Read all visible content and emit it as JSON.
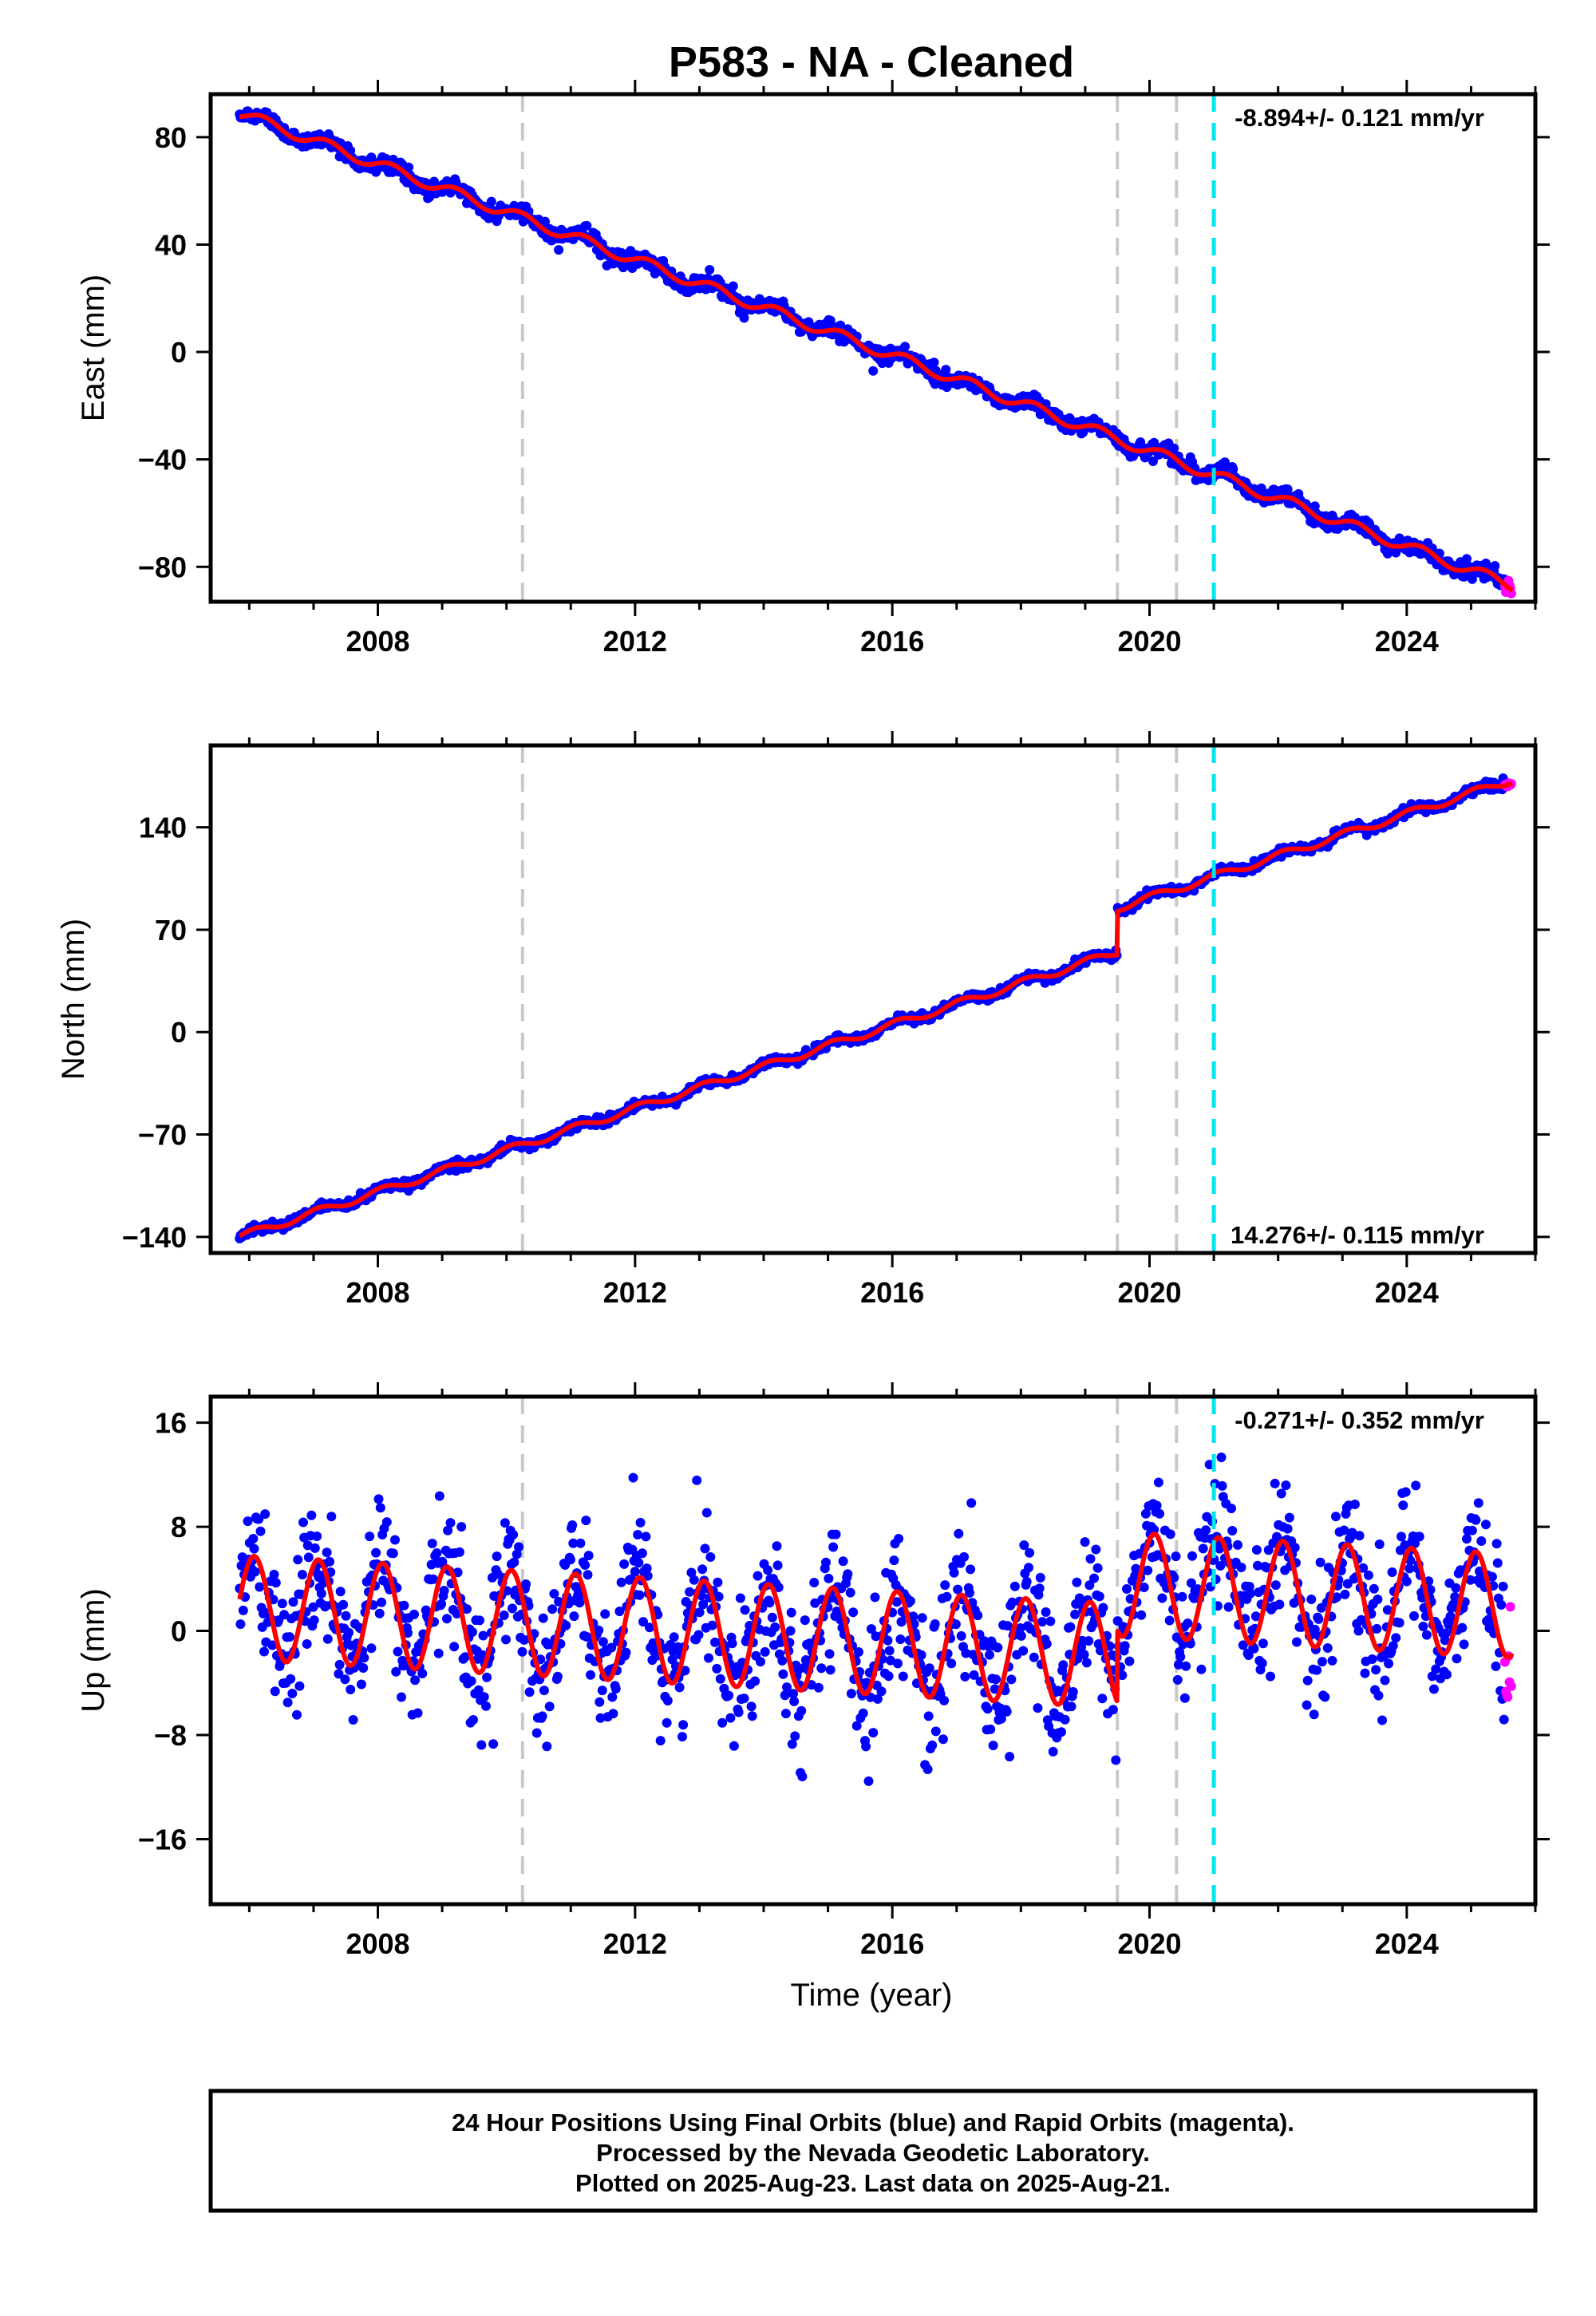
{
  "title": "P583  - NA - Cleaned",
  "xlabel": "Time (year)",
  "footer": {
    "line1": "24 Hour Positions Using Final Orbits (blue) and Rapid Orbits (magenta).",
    "line2": "Processed by the Nevada Geodetic Laboratory.",
    "line3": "Plotted on 2025-Aug-23. Last data on 2025-Aug-21."
  },
  "colors": {
    "final_orbits": "#0000ff",
    "rapid_orbits": "#ff00ff",
    "model": "#ff0000",
    "break_lines": "#c8c8c8",
    "event_line": "#00e5ee"
  },
  "chart_data": [
    {
      "type": "scatter",
      "ylabel": "East (mm)",
      "xlim": [
        2005.4,
        2026.0
      ],
      "ylim": [
        -93,
        96
      ],
      "yticks": [
        80,
        40,
        0,
        -40,
        -80
      ],
      "xticks": [
        2008,
        2012,
        2016,
        2020,
        2024
      ],
      "rate_label": "-8.894+/- 0.121 mm/yr",
      "rate_label_position": "top-right",
      "start": 2005.85,
      "end": 2025.64,
      "value_at_start": 89,
      "rate": -8.894,
      "annual_amplitude": 2.0,
      "annual_phase": 0.2,
      "scatter": 1.5,
      "steps": [],
      "break_lines": [
        2010.25,
        2019.5,
        2020.42
      ],
      "event_line": 2021.0
    },
    {
      "type": "scatter",
      "ylabel": "North (mm)",
      "xlim": [
        2005.4,
        2026.0
      ],
      "ylim": [
        -151,
        196
      ],
      "yticks": [
        140,
        70,
        0,
        -70,
        -140
      ],
      "xticks": [
        2008,
        2012,
        2016,
        2020,
        2024
      ],
      "rate_label": "14.276+/- 0.115 mm/yr",
      "rate_label_position": "bottom-right",
      "start": 2005.85,
      "end": 2025.64,
      "value_at_start": -140,
      "rate": 14.276,
      "annual_amplitude": 2.5,
      "annual_phase": 1.1,
      "scatter": 1.5,
      "steps": [
        {
          "year": 2019.5,
          "offset": 30
        }
      ],
      "break_lines": [
        2010.25,
        2019.5,
        2020.42
      ],
      "event_line": 2021.0
    },
    {
      "type": "scatter",
      "ylabel": "Up (mm)",
      "xlim": [
        2005.4,
        2026.0
      ],
      "ylim": [
        -21,
        18
      ],
      "yticks": [
        16,
        8,
        0,
        -8,
        -16
      ],
      "xticks": [
        2008,
        2012,
        2016,
        2020,
        2024
      ],
      "rate_label": "-0.271+/- 0.352 mm/yr",
      "rate_label_position": "top-right",
      "start": 2005.85,
      "end": 2025.64,
      "value_at_start": 1.8,
      "rate": -0.271,
      "annual_amplitude": 4.0,
      "annual_phase": 1.1,
      "scatter": 2.6,
      "steps": [
        {
          "year": 2019.5,
          "offset": 5.5
        }
      ],
      "break_lines": [
        2010.25,
        2019.5,
        2020.42
      ],
      "event_line": 2021.0
    }
  ]
}
